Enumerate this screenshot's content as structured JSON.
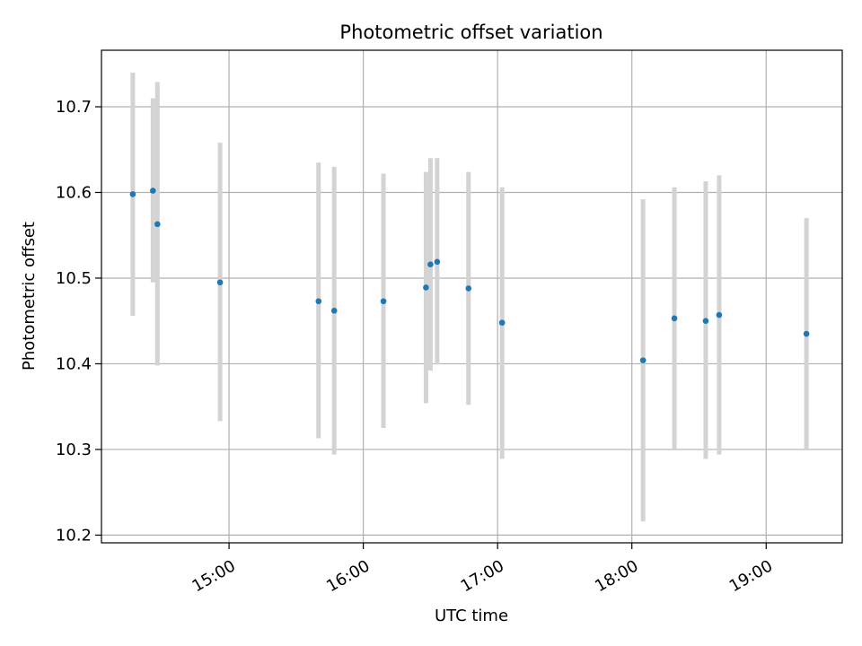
{
  "chart_data": {
    "type": "scatter",
    "title": "Photometric offset variation",
    "xlabel": "UTC time",
    "ylabel": "Photometric offset",
    "xlim": [
      "14:03",
      "19:34"
    ],
    "ylim": [
      10.191,
      10.766
    ],
    "xticks": [
      "15:00",
      "16:00",
      "17:00",
      "18:00",
      "19:00"
    ],
    "yticks": [
      "10.2",
      "10.3",
      "10.4",
      "10.5",
      "10.6",
      "10.7"
    ],
    "grid": true,
    "colors": {
      "points": "#1f77b4",
      "errorbars": "#d3d3d3",
      "grid": "#b0b0b0"
    },
    "points": [
      {
        "x": "14:17",
        "y": 10.598,
        "ylow": 10.456,
        "yhigh": 10.74
      },
      {
        "x": "14:26",
        "y": 10.602,
        "ylow": 10.495,
        "yhigh": 10.71
      },
      {
        "x": "14:28",
        "y": 10.563,
        "ylow": 10.398,
        "yhigh": 10.729
      },
      {
        "x": "14:56",
        "y": 10.495,
        "ylow": 10.333,
        "yhigh": 10.658
      },
      {
        "x": "15:40",
        "y": 10.473,
        "ylow": 10.313,
        "yhigh": 10.635
      },
      {
        "x": "15:47",
        "y": 10.462,
        "ylow": 10.294,
        "yhigh": 10.63
      },
      {
        "x": "16:09",
        "y": 10.473,
        "ylow": 10.325,
        "yhigh": 10.622
      },
      {
        "x": "16:28",
        "y": 10.489,
        "ylow": 10.354,
        "yhigh": 10.624
      },
      {
        "x": "16:30",
        "y": 10.516,
        "ylow": 10.392,
        "yhigh": 10.64
      },
      {
        "x": "16:33",
        "y": 10.519,
        "ylow": 10.399,
        "yhigh": 10.64
      },
      {
        "x": "16:47",
        "y": 10.488,
        "ylow": 10.352,
        "yhigh": 10.624
      },
      {
        "x": "17:02",
        "y": 10.448,
        "ylow": 10.289,
        "yhigh": 10.606
      },
      {
        "x": "18:05",
        "y": 10.404,
        "ylow": 10.216,
        "yhigh": 10.592
      },
      {
        "x": "18:19",
        "y": 10.453,
        "ylow": 10.3,
        "yhigh": 10.606
      },
      {
        "x": "18:33",
        "y": 10.45,
        "ylow": 10.289,
        "yhigh": 10.613
      },
      {
        "x": "18:39",
        "y": 10.457,
        "ylow": 10.294,
        "yhigh": 10.62
      },
      {
        "x": "19:18",
        "y": 10.435,
        "ylow": 10.301,
        "yhigh": 10.57
      }
    ]
  }
}
